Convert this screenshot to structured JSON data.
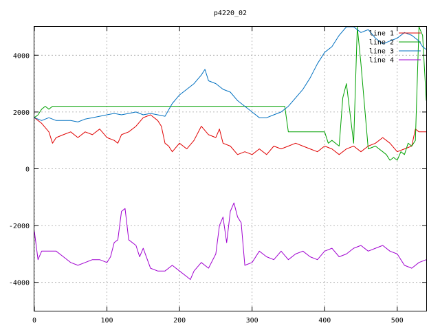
{
  "chart_data": {
    "type": "line",
    "title": "p4220_02",
    "xlabel": "",
    "ylabel": "",
    "xlim": [
      0,
      540
    ],
    "ylim": [
      -5000,
      5000
    ],
    "x_ticks": [
      0,
      100,
      200,
      300,
      400,
      500
    ],
    "y_ticks": [
      -4000,
      -2000,
      0,
      2000,
      4000
    ],
    "grid": true,
    "legend_position": "top-right",
    "series": [
      {
        "name": "line 1",
        "color": "#e00000",
        "x": [
          0,
          10,
          20,
          25,
          30,
          40,
          50,
          60,
          70,
          80,
          90,
          100,
          110,
          115,
          120,
          130,
          140,
          150,
          160,
          170,
          175,
          180,
          185,
          190,
          200,
          210,
          220,
          230,
          240,
          250,
          255,
          260,
          270,
          280,
          290,
          300,
          310,
          320,
          330,
          340,
          350,
          360,
          370,
          380,
          390,
          400,
          410,
          420,
          430,
          440,
          450,
          460,
          470,
          480,
          490,
          500,
          510,
          520,
          525,
          530,
          540
        ],
        "y": [
          1800,
          1600,
          1300,
          900,
          1100,
          1200,
          1300,
          1100,
          1300,
          1200,
          1400,
          1100,
          1000,
          900,
          1200,
          1300,
          1500,
          1800,
          1900,
          1700,
          1500,
          900,
          800,
          600,
          900,
          700,
          1000,
          1500,
          1200,
          1100,
          1400,
          900,
          800,
          500,
          600,
          500,
          700,
          500,
          800,
          700,
          800,
          900,
          800,
          700,
          600,
          800,
          700,
          500,
          700,
          800,
          600,
          800,
          900,
          1100,
          900,
          600,
          700,
          800,
          1400,
          1300,
          1300
        ]
      },
      {
        "name": "line 2",
        "color": "#00a000",
        "x": [
          0,
          5,
          10,
          15,
          20,
          25,
          30,
          100,
          200,
          300,
          345,
          350,
          355,
          400,
          405,
          410,
          420,
          425,
          430,
          440,
          445,
          450,
          460,
          470,
          480,
          485,
          490,
          495,
          500,
          505,
          510,
          515,
          520,
          525,
          530,
          535,
          540
        ],
        "y": [
          1800,
          1900,
          2100,
          2200,
          2100,
          2200,
          2200,
          2200,
          2200,
          2200,
          2200,
          1300,
          1300,
          1300,
          900,
          1000,
          800,
          2500,
          3000,
          900,
          5000,
          3700,
          700,
          800,
          600,
          500,
          300,
          400,
          300,
          600,
          500,
          900,
          800,
          1000,
          5000,
          4700,
          2400
        ]
      },
      {
        "name": "line 3",
        "color": "#0070c0",
        "x": [
          0,
          10,
          20,
          30,
          40,
          50,
          60,
          70,
          80,
          90,
          100,
          110,
          120,
          130,
          140,
          150,
          160,
          170,
          180,
          190,
          200,
          210,
          220,
          230,
          235,
          240,
          250,
          260,
          270,
          280,
          290,
          300,
          310,
          320,
          330,
          340,
          350,
          360,
          370,
          380,
          390,
          400,
          410,
          420,
          430,
          440,
          450,
          460,
          470,
          480,
          490,
          500,
          510,
          520,
          530,
          535,
          540
        ],
        "y": [
          1800,
          1700,
          1800,
          1700,
          1700,
          1700,
          1650,
          1750,
          1800,
          1850,
          1900,
          1950,
          1900,
          1950,
          2000,
          1900,
          1950,
          1900,
          1850,
          2300,
          2600,
          2800,
          3000,
          3300,
          3500,
          3100,
          3000,
          2800,
          2700,
          2400,
          2200,
          2000,
          1800,
          1800,
          1900,
          2000,
          2200,
          2500,
          2800,
          3200,
          3700,
          4100,
          4300,
          4700,
          5000,
          5000,
          4800,
          4900,
          4600,
          4400,
          4500,
          4600,
          4800,
          4700,
          4500,
          4300,
          4200
        ]
      },
      {
        "name": "line 4",
        "color": "#a000d0",
        "x": [
          0,
          5,
          10,
          20,
          30,
          40,
          50,
          60,
          70,
          80,
          90,
          100,
          105,
          110,
          115,
          120,
          125,
          130,
          140,
          145,
          150,
          160,
          170,
          180,
          190,
          200,
          210,
          215,
          220,
          230,
          240,
          250,
          255,
          260,
          265,
          270,
          275,
          280,
          285,
          290,
          300,
          310,
          320,
          330,
          340,
          350,
          360,
          370,
          380,
          390,
          400,
          410,
          420,
          430,
          440,
          450,
          460,
          470,
          480,
          490,
          500,
          510,
          520,
          530,
          540
        ],
        "y": [
          -2200,
          -3200,
          -2900,
          -2900,
          -2900,
          -3100,
          -3300,
          -3400,
          -3300,
          -3200,
          -3200,
          -3300,
          -3100,
          -2600,
          -2500,
          -1500,
          -1400,
          -2500,
          -2700,
          -3100,
          -2800,
          -3500,
          -3600,
          -3600,
          -3400,
          -3600,
          -3800,
          -3900,
          -3600,
          -3300,
          -3500,
          -3000,
          -2000,
          -1700,
          -2600,
          -1500,
          -1200,
          -1700,
          -1900,
          -3400,
          -3300,
          -2900,
          -3100,
          -3200,
          -2900,
          -3200,
          -3000,
          -2900,
          -3100,
          -3200,
          -2900,
          -2800,
          -3100,
          -3000,
          -2800,
          -2700,
          -2900,
          -2800,
          -2700,
          -2900,
          -3000,
          -3400,
          -3500,
          -3300,
          -3200
        ]
      }
    ]
  }
}
